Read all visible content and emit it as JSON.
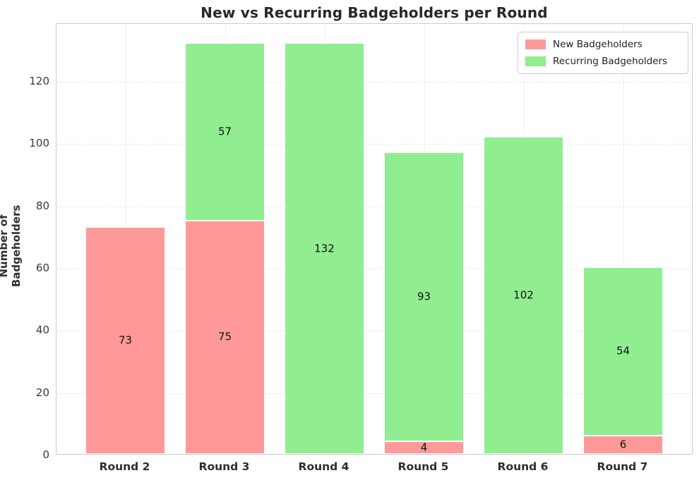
{
  "chart_data": {
    "type": "bar",
    "stacked": true,
    "title": "New vs Recurring Badgeholders per Round",
    "xlabel": "",
    "ylabel": "Number of Badgeholders",
    "categories": [
      "Round 2",
      "Round 3",
      "Round 4",
      "Round 5",
      "Round 6",
      "Round 7"
    ],
    "series": [
      {
        "name": "New Badgeholders",
        "color": "#ff9999",
        "values": [
          73,
          75,
          0,
          4,
          0,
          6
        ]
      },
      {
        "name": "Recurring Badgeholders",
        "color": "#90ee90",
        "values": [
          0,
          57,
          132,
          93,
          102,
          54
        ]
      }
    ],
    "totals": [
      73,
      132,
      132,
      97,
      102,
      60
    ],
    "yticks": [
      0,
      20,
      40,
      60,
      80,
      100,
      120
    ],
    "ylim": [
      0,
      138.6
    ],
    "grid": true,
    "grid_style": "dashed",
    "bar_labels": true,
    "legend_position": "upper right",
    "background_color": "#ffffff",
    "spine_color": "#cccccc"
  }
}
